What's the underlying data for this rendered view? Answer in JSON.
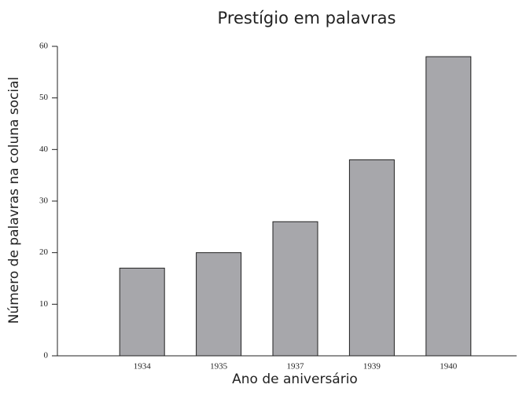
{
  "chart_data": {
    "type": "bar",
    "title": "Prestígio em palavras",
    "x_label": "Ano de aniversário",
    "y_label": "Número de palavras na coluna social",
    "categories": [
      "1934",
      "1935",
      "1937",
      "1939",
      "1940"
    ],
    "values": [
      17,
      20,
      26,
      38,
      58
    ],
    "color": "#a7a7ab",
    "ylim": [
      0,
      60
    ],
    "yticks": [
      0,
      10,
      20,
      30,
      40,
      50,
      60
    ],
    "grid": false
  }
}
